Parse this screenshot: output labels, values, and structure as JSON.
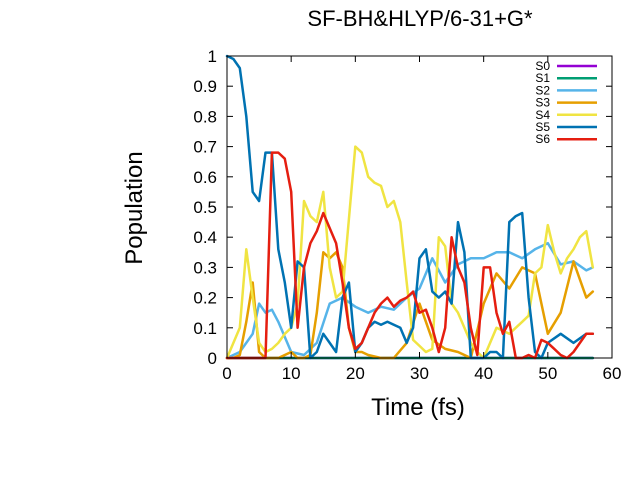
{
  "chart_data": {
    "type": "line",
    "title": "SF-BH&HLYP/6-31+G*",
    "xlabel": "Time (fs)",
    "ylabel": "Population",
    "xlim": [
      0,
      60
    ],
    "ylim": [
      0,
      1
    ],
    "xticks": [
      "0",
      "10",
      "20",
      "30",
      "40",
      "50",
      "60"
    ],
    "yticks": [
      "0",
      "0.1",
      "0.2",
      "0.3",
      "0.4",
      "0.5",
      "0.6",
      "0.7",
      "0.8",
      "0.9",
      "1"
    ],
    "grid": false,
    "legend_position": "top-right",
    "series": [
      {
        "name": "S0",
        "color": "#9400d3",
        "x": [
          0,
          57
        ],
        "y": [
          0,
          0
        ]
      },
      {
        "name": "S1",
        "color": "#009e73",
        "x": [
          0,
          57
        ],
        "y": [
          0,
          0
        ]
      },
      {
        "name": "S2",
        "color": "#56b4e9",
        "x": [
          0,
          2,
          4,
          5,
          6,
          7,
          8,
          10,
          12,
          14,
          16,
          18,
          20,
          22,
          24,
          26,
          28,
          30,
          32,
          34,
          36,
          38,
          40,
          42,
          44,
          46,
          48,
          50,
          52,
          54,
          56,
          57
        ],
        "y": [
          0,
          0.02,
          0.08,
          0.18,
          0.15,
          0.16,
          0.12,
          0.02,
          0.01,
          0.05,
          0.18,
          0.2,
          0.17,
          0.15,
          0.17,
          0.16,
          0.2,
          0.23,
          0.33,
          0.25,
          0.31,
          0.33,
          0.33,
          0.35,
          0.35,
          0.33,
          0.36,
          0.38,
          0.31,
          0.32,
          0.29,
          0.3
        ]
      },
      {
        "name": "S3",
        "color": "#e69f00",
        "x": [
          0,
          1,
          2,
          3,
          4,
          5,
          6,
          7,
          8,
          9,
          10,
          11,
          12,
          13,
          14,
          15,
          16,
          17,
          18,
          19,
          20,
          21,
          22,
          24,
          26,
          28,
          30,
          32,
          34,
          36,
          38,
          40,
          42,
          44,
          46,
          48,
          50,
          52,
          54,
          56,
          57
        ],
        "y": [
          0,
          0,
          0.01,
          0.12,
          0.25,
          0.02,
          0.0,
          0.0,
          0.0,
          0.01,
          0.02,
          0.0,
          0.0,
          0.01,
          0.15,
          0.35,
          0.33,
          0.35,
          0.3,
          0.1,
          0.02,
          0.02,
          0.01,
          0.0,
          0.0,
          0.05,
          0.18,
          0.06,
          0.03,
          0.02,
          0.0,
          0.18,
          0.28,
          0.23,
          0.3,
          0.28,
          0.08,
          0.15,
          0.32,
          0.2,
          0.22
        ]
      },
      {
        "name": "S4",
        "color": "#f0e442",
        "x": [
          0,
          2,
          3,
          4,
          5,
          6,
          7,
          8,
          9,
          10,
          11,
          12,
          13,
          14,
          15,
          16,
          17,
          18,
          19,
          20,
          21,
          22,
          23,
          24,
          25,
          26,
          27,
          28,
          29,
          30,
          31,
          32,
          33,
          34,
          35,
          36,
          37,
          38,
          39,
          40,
          41,
          42,
          44,
          46,
          47,
          48,
          49,
          50,
          51,
          52,
          53,
          54,
          55,
          56,
          57
        ],
        "y": [
          0,
          0.1,
          0.36,
          0.2,
          0.05,
          0.02,
          0.03,
          0.05,
          0.08,
          0.1,
          0.18,
          0.52,
          0.47,
          0.45,
          0.55,
          0.3,
          0.2,
          0.22,
          0.46,
          0.7,
          0.68,
          0.6,
          0.58,
          0.57,
          0.5,
          0.52,
          0.45,
          0.25,
          0.06,
          0.04,
          0.02,
          0.03,
          0.4,
          0.37,
          0.18,
          0.15,
          0.1,
          0.05,
          0.02,
          0.0,
          0.05,
          0.1,
          0.08,
          0.12,
          0.14,
          0.28,
          0.3,
          0.44,
          0.35,
          0.28,
          0.33,
          0.36,
          0.4,
          0.42,
          0.3
        ]
      },
      {
        "name": "S5",
        "color": "#0072b2",
        "x": [
          0,
          1,
          2,
          3,
          4,
          5,
          6,
          7,
          8,
          9,
          10,
          11,
          12,
          13,
          14,
          15,
          16,
          17,
          18,
          19,
          20,
          21,
          22,
          23,
          24,
          25,
          26,
          27,
          28,
          29,
          30,
          31,
          32,
          33,
          34,
          35,
          36,
          37,
          38,
          39,
          40,
          41,
          42,
          43,
          44,
          45,
          46,
          47,
          48,
          49,
          50,
          52,
          54,
          56,
          57
        ],
        "y": [
          1.0,
          0.99,
          0.96,
          0.8,
          0.55,
          0.52,
          0.68,
          0.68,
          0.36,
          0.25,
          0.1,
          0.32,
          0.3,
          0.0,
          0.02,
          0.08,
          0.05,
          0.02,
          0.2,
          0.25,
          0.02,
          0.05,
          0.1,
          0.12,
          0.11,
          0.12,
          0.11,
          0.1,
          0.05,
          0.1,
          0.33,
          0.36,
          0.22,
          0.2,
          0.22,
          0.18,
          0.45,
          0.35,
          0.0,
          0.0,
          0.0,
          0.02,
          0.02,
          0.0,
          0.45,
          0.47,
          0.48,
          0.2,
          0.02,
          0.0,
          0.05,
          0.08,
          0.05,
          0.08,
          0.08
        ]
      },
      {
        "name": "S6",
        "color": "#e51e10",
        "x": [
          0,
          4,
          6,
          7,
          8,
          9,
          10,
          11,
          12,
          13,
          14,
          15,
          16,
          17,
          18,
          19,
          20,
          21,
          22,
          23,
          24,
          25,
          26,
          27,
          28,
          29,
          30,
          31,
          32,
          33,
          34,
          35,
          36,
          37,
          38,
          39,
          40,
          41,
          42,
          43,
          44,
          45,
          46,
          47,
          48,
          49,
          50,
          51,
          52,
          53,
          54,
          55,
          56,
          57
        ],
        "y": [
          0,
          0,
          0,
          0.68,
          0.68,
          0.66,
          0.55,
          0.1,
          0.3,
          0.38,
          0.42,
          0.48,
          0.43,
          0.38,
          0.25,
          0.1,
          0.03,
          0.05,
          0.1,
          0.15,
          0.18,
          0.2,
          0.17,
          0.19,
          0.2,
          0.22,
          0.15,
          0.16,
          0.1,
          0.02,
          0.1,
          0.4,
          0.3,
          0.25,
          0.1,
          0.01,
          0.3,
          0.3,
          0.15,
          0.08,
          0.12,
          0.0,
          0.0,
          0.01,
          0.0,
          0.06,
          0.05,
          0.03,
          0.01,
          0.0,
          0.02,
          0.05,
          0.08,
          0.08
        ]
      }
    ]
  }
}
